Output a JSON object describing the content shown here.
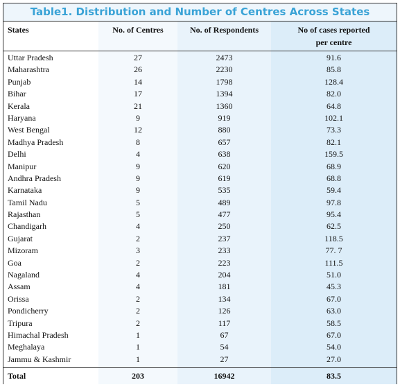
{
  "title": "Table1. Distribution and Number of Centres Across States",
  "headers": {
    "states": "States",
    "centres": "No. of Centres",
    "respondents": "No. of Respondents",
    "cases_line1": "No of cases reported",
    "cases_line2": "per centre"
  },
  "rows": [
    {
      "state": "Uttar Pradesh",
      "centres": "27",
      "respondents": "2473",
      "cases": "91.6"
    },
    {
      "state": "Maharashtra",
      "centres": "26",
      "respondents": "2230",
      "cases": "85.8"
    },
    {
      "state": "Punjab",
      "centres": "14",
      "respondents": "1798",
      "cases": "128.4"
    },
    {
      "state": "Bihar",
      "centres": "17",
      "respondents": "1394",
      "cases": "82.0"
    },
    {
      "state": "Kerala",
      "centres": "21",
      "respondents": "1360",
      "cases": "64.8"
    },
    {
      "state": "Haryana",
      "centres": "9",
      "respondents": "919",
      "cases": "102.1"
    },
    {
      "state": "West Bengal",
      "centres": "12",
      "respondents": "880",
      "cases": "73.3"
    },
    {
      "state": "Madhya Pradesh",
      "centres": "8",
      "respondents": "657",
      "cases": "82.1"
    },
    {
      "state": "Delhi",
      "centres": "4",
      "respondents": "638",
      "cases": "159.5"
    },
    {
      "state": "Manipur",
      "centres": "9",
      "respondents": "620",
      "cases": "68.9"
    },
    {
      "state": "Andhra Pradesh",
      "centres": "9",
      "respondents": "619",
      "cases": "68.8"
    },
    {
      "state": "Karnataka",
      "centres": "9",
      "respondents": "535",
      "cases": "59.4"
    },
    {
      "state": "Tamil Nadu",
      "centres": "5",
      "respondents": "489",
      "cases": "97.8"
    },
    {
      "state": "Rajasthan",
      "centres": "5",
      "respondents": "477",
      "cases": "95.4"
    },
    {
      "state": "Chandigarh",
      "centres": "4",
      "respondents": "250",
      "cases": "62.5"
    },
    {
      "state": "Gujarat",
      "centres": "2",
      "respondents": "237",
      "cases": "118.5"
    },
    {
      "state": "Mizoram",
      "centres": "3",
      "respondents": "233",
      "cases": "77. 7"
    },
    {
      "state": "Goa",
      "centres": "2",
      "respondents": "223",
      "cases": "111.5"
    },
    {
      "state": "Nagaland",
      "centres": "4",
      "respondents": "204",
      "cases": "51.0"
    },
    {
      "state": "Assam",
      "centres": "4",
      "respondents": "181",
      "cases": "45.3"
    },
    {
      "state": "Orissa",
      "centres": "2",
      "respondents": "134",
      "cases": "67.0"
    },
    {
      "state": "Pondicherry",
      "centres": "2",
      "respondents": "126",
      "cases": "63.0"
    },
    {
      "state": "Tripura",
      "centres": "2",
      "respondents": "117",
      "cases": "58.5"
    },
    {
      "state": "Himachal Pradesh",
      "centres": "1",
      "respondents": "67",
      "cases": "67.0"
    },
    {
      "state": "Meghalaya",
      "centres": "1",
      "respondents": "54",
      "cases": "54.0"
    },
    {
      "state": "Jammu & Kashmir",
      "centres": "1",
      "respondents": "27",
      "cases": "27.0"
    }
  ],
  "total": {
    "label": "Total",
    "centres": "203",
    "respondents": "16942",
    "cases": "83.5"
  },
  "colors": {
    "title": "#3aa3d6",
    "column_shades": [
      "#ffffff",
      "#f4f9fd",
      "#e9f3fb",
      "#dcedf9"
    ]
  }
}
